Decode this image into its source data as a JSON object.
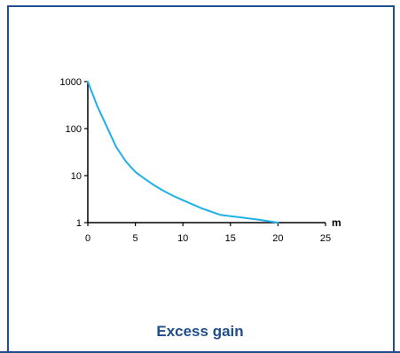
{
  "chart_data": {
    "type": "line",
    "title": "Excess gain",
    "xlabel": "m",
    "ylabel": "",
    "xlim": [
      0,
      25
    ],
    "ylim": [
      1,
      1000
    ],
    "y_scale": "log",
    "grid": false,
    "x_ticks": [
      "0",
      "5",
      "10",
      "15",
      "20",
      "25"
    ],
    "y_ticks": [
      "1",
      "10",
      "100",
      "1000"
    ],
    "series": [
      {
        "color": "#1fb0e6",
        "x": [
          0,
          1,
          2,
          3,
          4,
          5,
          6,
          7,
          8,
          9,
          10,
          12,
          14,
          16,
          18,
          20
        ],
        "y": [
          1000,
          300,
          110,
          40,
          20,
          12,
          8.5,
          6.2,
          4.7,
          3.7,
          3.0,
          2.0,
          1.45,
          1.3,
          1.15,
          1.0
        ]
      }
    ]
  },
  "colors": {
    "frame": "#1f4e8c",
    "axis": "#000000",
    "caption": "#1f4e8c"
  }
}
